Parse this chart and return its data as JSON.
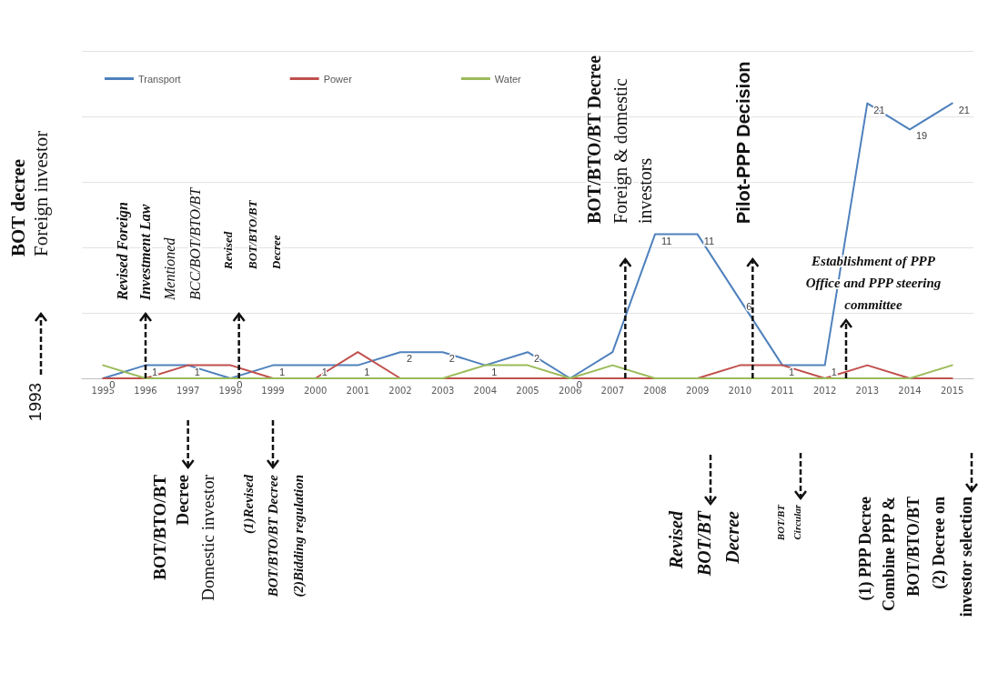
{
  "chart_data": {
    "type": "line",
    "categories": [
      "1995",
      "1996",
      "1997",
      "1998",
      "1999",
      "2000",
      "2001",
      "2002",
      "2003",
      "2004",
      "2005",
      "2006",
      "2007",
      "2008",
      "2009",
      "2010",
      "2011",
      "2012",
      "2013",
      "2014",
      "2015"
    ],
    "series": [
      {
        "name": "Transport",
        "color": "#4f81bd",
        "values": [
          0,
          1,
          1,
          0,
          1,
          1,
          1,
          2,
          2,
          1,
          2,
          0,
          2,
          11,
          11,
          6,
          1,
          1,
          21,
          19,
          21
        ],
        "value_labels": [
          "0",
          "1",
          "1",
          "0",
          "1",
          "1",
          "1",
          "2",
          "2",
          "1",
          "2",
          "0",
          null,
          "11",
          "11",
          "6",
          "1",
          "1",
          "21",
          "19",
          "21"
        ]
      },
      {
        "name": "Power",
        "color": "#c0504d",
        "values": [
          0,
          0,
          1,
          1,
          0,
          0,
          2,
          0,
          0,
          0,
          0,
          0,
          0,
          0,
          0,
          1,
          1,
          0,
          1,
          0,
          0
        ]
      },
      {
        "name": "Water",
        "color": "#9bbb59",
        "values": [
          1,
          0,
          0,
          0,
          0,
          0,
          0,
          0,
          0,
          1,
          1,
          0,
          1,
          0,
          0,
          0,
          0,
          0,
          0,
          0,
          1
        ]
      }
    ],
    "ylim": [
      0,
      25
    ],
    "yticks": [
      {
        "value": 0,
        "label": null
      },
      {
        "value": 5,
        "label": null
      },
      {
        "value": 10,
        "label": null
      },
      {
        "value": 15,
        "label": null
      },
      {
        "value": 20,
        "label": null
      },
      {
        "value": 25,
        "label": null
      }
    ],
    "tick_labels": "x",
    "grid": "y",
    "legend": "top left",
    "marker": "none",
    "line_style": "solid",
    "annotations": [
      "1993",
      "BOT decree\nForeign investor",
      "Revised Foreign\nInvestment Law\nMentioned\nBCC/BOT/BTO/BT",
      "Revised\nBOT/BTO/BT\nDecree",
      "BOT/BTO/BT Decree\nForeign & domestic\ninvestors",
      "Pilot-PPP Decision",
      "Establishment of PPP\nOffice and PPP steering\ncommittee",
      "BOT/BTO/BT\nDecree\nDomestic investor",
      "(1)Revised\nBOT/BTO/BT Decree\n(2)Bidding regulation",
      "Revised\nBOT/BT\nDecree",
      "BOT/BT\nCircular",
      "(1) PPP Decree\nCombine PPP &\nBOT/BTO/BT\n(2) Decree on\ninvestor selection"
    ]
  }
}
